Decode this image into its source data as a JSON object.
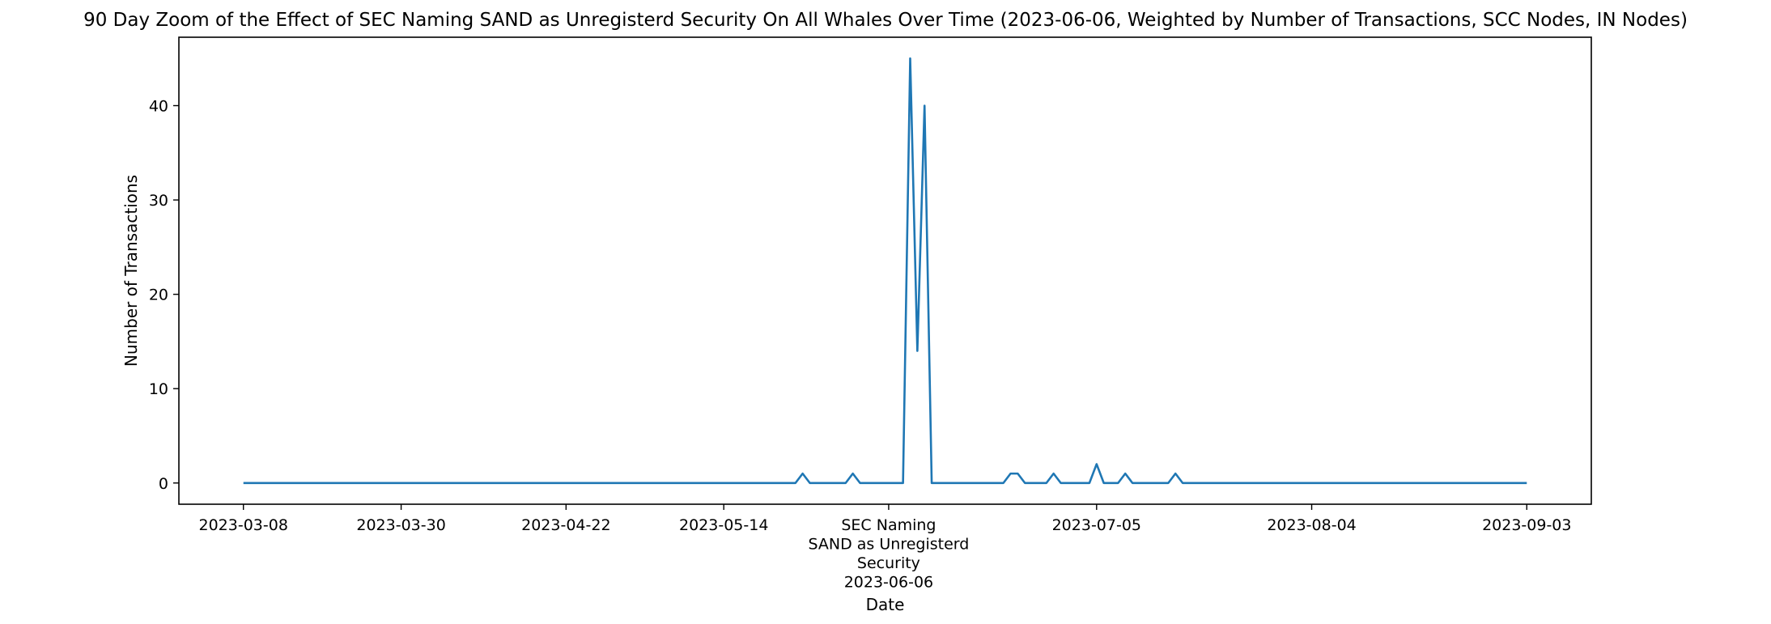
{
  "chart_data": {
    "type": "line",
    "title": "90 Day Zoom of the Effect of SEC Naming SAND as Unregisterd Security On All Whales Over Time (2023-06-06, Weighted by Number of Transactions, SCC Nodes, IN Nodes)",
    "xlabel": "Date",
    "ylabel": "Number of Transactions",
    "xlim": [
      "2023-02-27",
      "2023-09-12"
    ],
    "ylim": [
      -2.25,
      47.25
    ],
    "grid": false,
    "x_ticks": [
      {
        "date": "2023-03-08",
        "label": "2023-03-08"
      },
      {
        "date": "2023-03-30",
        "label": "2023-03-30"
      },
      {
        "date": "2023-04-22",
        "label": "2023-04-22"
      },
      {
        "date": "2023-05-14",
        "label": "2023-05-14"
      },
      {
        "date": "2023-06-06",
        "label": "SEC Naming\nSAND as Unregisterd\nSecurity\n2023-06-06"
      },
      {
        "date": "2023-07-05",
        "label": "2023-07-05"
      },
      {
        "date": "2023-08-04",
        "label": "2023-08-04"
      },
      {
        "date": "2023-09-03",
        "label": "2023-09-03"
      }
    ],
    "y_ticks": [
      0,
      10,
      20,
      30,
      40
    ],
    "series": [
      {
        "color": "#1f77b4",
        "points": [
          [
            "2023-03-08",
            0
          ],
          [
            "2023-05-24",
            0
          ],
          [
            "2023-05-25",
            1
          ],
          [
            "2023-05-26",
            0
          ],
          [
            "2023-05-31",
            0
          ],
          [
            "2023-06-01",
            1
          ],
          [
            "2023-06-02",
            0
          ],
          [
            "2023-06-08",
            0
          ],
          [
            "2023-06-09",
            45
          ],
          [
            "2023-06-10",
            14
          ],
          [
            "2023-06-11",
            40
          ],
          [
            "2023-06-12",
            0
          ],
          [
            "2023-06-22",
            0
          ],
          [
            "2023-06-23",
            1
          ],
          [
            "2023-06-24",
            1
          ],
          [
            "2023-06-25",
            0
          ],
          [
            "2023-06-28",
            0
          ],
          [
            "2023-06-29",
            1
          ],
          [
            "2023-06-30",
            0
          ],
          [
            "2023-07-04",
            0
          ],
          [
            "2023-07-05",
            2
          ],
          [
            "2023-07-06",
            0
          ],
          [
            "2023-07-08",
            0
          ],
          [
            "2023-07-09",
            1
          ],
          [
            "2023-07-10",
            0
          ],
          [
            "2023-07-15",
            0
          ],
          [
            "2023-07-16",
            1
          ],
          [
            "2023-07-17",
            0
          ],
          [
            "2023-09-03",
            0
          ]
        ]
      }
    ]
  }
}
